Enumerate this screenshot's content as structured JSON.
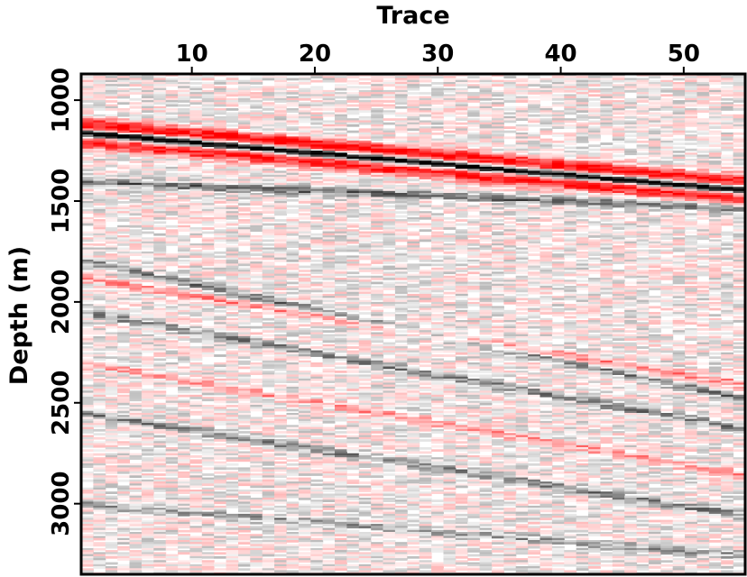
{
  "chart_data": {
    "type": "heatmap",
    "title": "",
    "xlabel": "Trace",
    "ylabel": "Depth (m)",
    "x_axis_position": "top",
    "xlim": [
      1,
      55
    ],
    "ylim": [
      3350,
      870
    ],
    "x_ticks": [
      10,
      20,
      30,
      40,
      50
    ],
    "y_ticks": [
      1000,
      1500,
      2000,
      2500,
      3000
    ],
    "colormap": {
      "negative": "#000000",
      "zero": "#ffffff",
      "positive": "#ff0000"
    },
    "grid": false,
    "legend": "none",
    "n_traces": 55,
    "events": [
      {
        "polarity": "red-black-red",
        "amplitude": 1.0,
        "depth_at_trace_1": 1160,
        "depth_at_trace_55": 1440
      },
      {
        "polarity": "black",
        "amplitude": 0.55,
        "depth_at_trace_1": 1400,
        "depth_at_trace_55": 1530
      },
      {
        "polarity": "black",
        "amplitude": 0.5,
        "depth_at_trace_1": 1800,
        "depth_at_trace_55": 2470
      },
      {
        "polarity": "red",
        "amplitude": 0.45,
        "depth_at_trace_1": 1880,
        "depth_at_trace_55": 2400
      },
      {
        "polarity": "black",
        "amplitude": 0.45,
        "depth_at_trace_1": 2050,
        "depth_at_trace_55": 2620
      },
      {
        "polarity": "red",
        "amplitude": 0.4,
        "depth_at_trace_1": 2300,
        "depth_at_trace_55": 2850
      },
      {
        "polarity": "black",
        "amplitude": 0.45,
        "depth_at_trace_1": 2550,
        "depth_at_trace_55": 3050
      },
      {
        "polarity": "black",
        "amplitude": 0.35,
        "depth_at_trace_1": 3000,
        "depth_at_trace_55": 3250
      }
    ]
  }
}
